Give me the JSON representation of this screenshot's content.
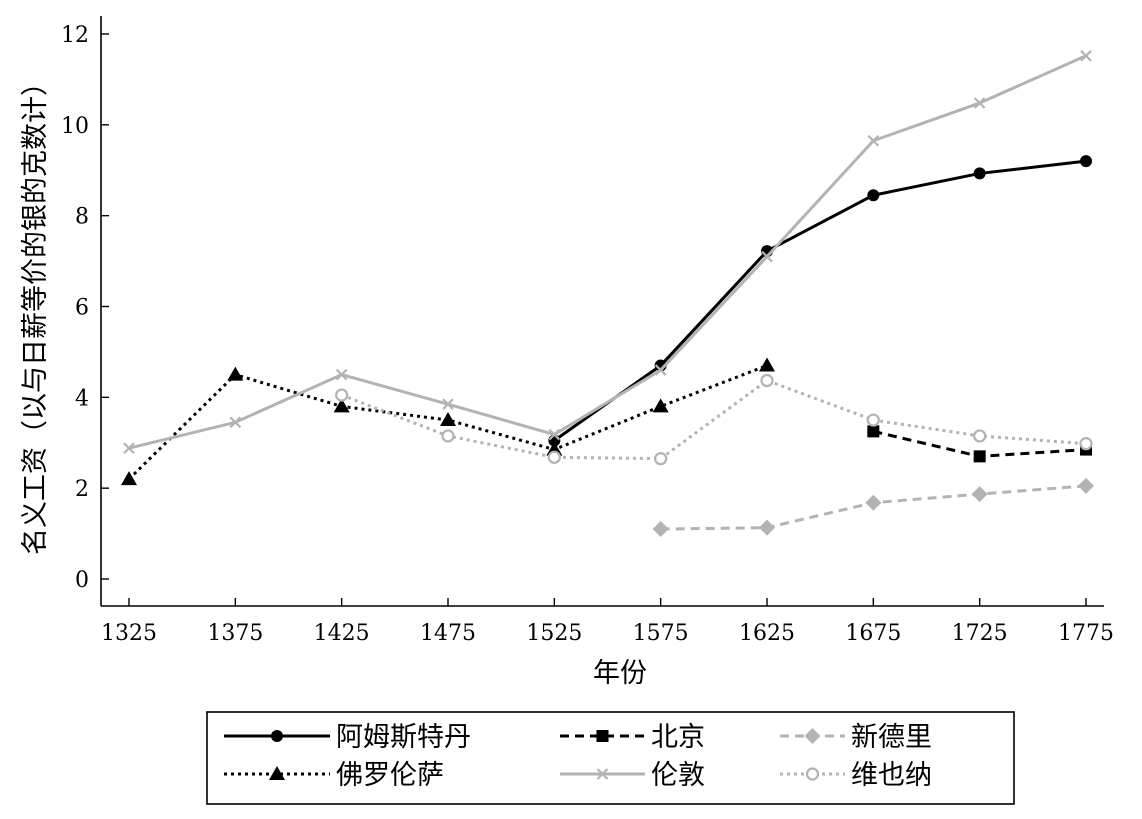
{
  "chart_data": {
    "type": "line",
    "xlabel": "年份",
    "ylabel": "名义工资（以与日薪等价的银的克数计）",
    "x_ticks": [
      1325,
      1375,
      1425,
      1475,
      1525,
      1575,
      1625,
      1675,
      1725,
      1775
    ],
    "y_ticks": [
      0,
      2,
      4,
      6,
      8,
      10,
      12
    ],
    "xlim": [
      1315,
      1780
    ],
    "ylim": [
      -0.6,
      12.4
    ],
    "grid": false,
    "legend_position": "bottom",
    "series": [
      {
        "name": "阿姆斯特丹",
        "color": "#000000",
        "dash": "solid",
        "marker": "circle-filled",
        "x": [
          1525,
          1575,
          1625,
          1675,
          1725,
          1775
        ],
        "y": [
          3.05,
          4.7,
          7.22,
          8.45,
          8.93,
          9.2
        ]
      },
      {
        "name": "北京",
        "color": "#000000",
        "dash": "dashed",
        "marker": "square-filled",
        "x": [
          1675,
          1725,
          1775
        ],
        "y": [
          3.25,
          2.7,
          2.85
        ]
      },
      {
        "name": "新德里",
        "color": "#b3b3b3",
        "dash": "dashed",
        "marker": "diamond-filled",
        "x": [
          1575,
          1625,
          1675,
          1725,
          1775
        ],
        "y": [
          1.1,
          1.13,
          1.68,
          1.87,
          2.05
        ]
      },
      {
        "name": "佛罗伦萨",
        "color": "#000000",
        "dash": "dotted",
        "marker": "triangle-filled",
        "x": [
          1325,
          1375,
          1425,
          1475,
          1525,
          1575,
          1625
        ],
        "y": [
          2.2,
          4.5,
          3.8,
          3.5,
          2.85,
          3.8,
          4.7
        ]
      },
      {
        "name": "伦敦",
        "color": "#b3b3b3",
        "dash": "solid",
        "marker": "x",
        "x": [
          1325,
          1375,
          1425,
          1475,
          1525,
          1575,
          1625,
          1675,
          1725,
          1775
        ],
        "y": [
          2.88,
          3.45,
          4.5,
          3.85,
          3.18,
          4.6,
          7.1,
          9.65,
          10.48,
          11.52
        ]
      },
      {
        "name": "维也纳",
        "color": "#b3b3b3",
        "dash": "dotted",
        "marker": "circle-open",
        "x": [
          1425,
          1475,
          1525,
          1575,
          1625,
          1675,
          1725,
          1775
        ],
        "y": [
          4.05,
          3.15,
          2.68,
          2.65,
          4.37,
          3.5,
          3.15,
          2.98
        ]
      }
    ]
  }
}
